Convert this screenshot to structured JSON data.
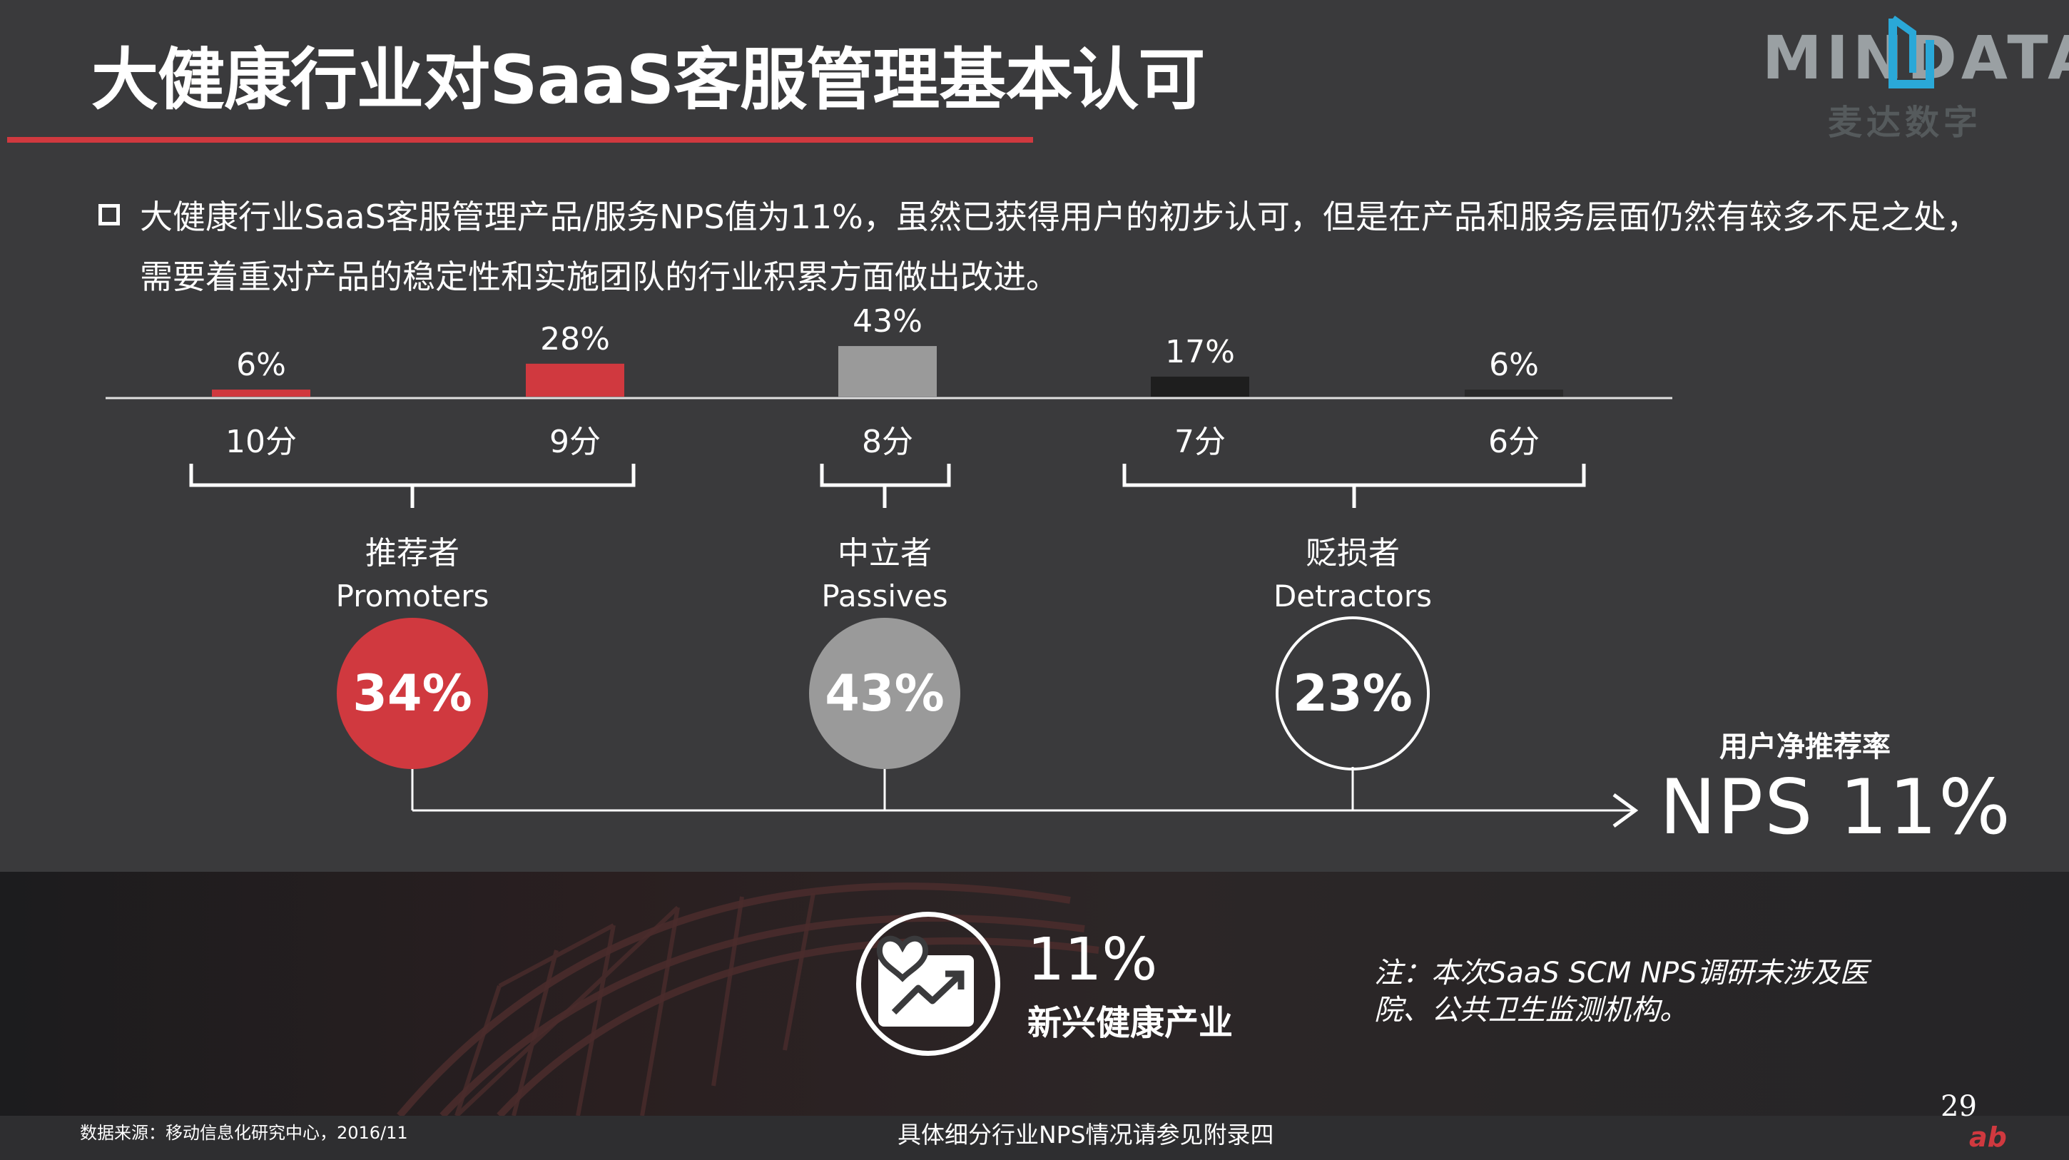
{
  "title": "大健康行业对SaaS客服管理基本认可",
  "logo": {
    "brand": "MINDATA",
    "subtitle": "麦达数字"
  },
  "summary": "大健康行业SaaS客服管理产品/服务NPS值为11%，虽然已获得用户的初步认可，但是在产品和服务层面仍然有较多不足之处，需要着重对产品的稳定性和实施团队的行业积累方面做出改进。",
  "chart_data": {
    "type": "bar",
    "categories": [
      "10分",
      "9分",
      "8分",
      "7分",
      "6分"
    ],
    "values": [
      6,
      28,
      43,
      17,
      6
    ],
    "value_labels": [
      "6%",
      "28%",
      "43%",
      "17%",
      "6%"
    ],
    "colors": [
      "#d0393f",
      "#d0393f",
      "#9a9a9a",
      "#1e1e1e",
      "#2a2a2a"
    ],
    "groups": [
      {
        "name_cn": "推荐者",
        "name_en": "Promoters",
        "value": "34%",
        "style": "red",
        "fill": "#d0393f",
        "categories": [
          "10分",
          "9分"
        ]
      },
      {
        "name_cn": "中立者",
        "name_en": "Passives",
        "value": "43%",
        "style": "gray",
        "fill": "#9a9a9a",
        "categories": [
          "8分"
        ]
      },
      {
        "name_cn": "贬损者",
        "name_en": "Detractors",
        "value": "23%",
        "style": "outline",
        "fill": "none",
        "categories": [
          "7分",
          "6分"
        ]
      }
    ]
  },
  "nps": {
    "label": "用户净推荐率",
    "value": "NPS  11%"
  },
  "stat": {
    "value": "11%",
    "label": "新兴健康产业",
    "icon": "heart-chart-icon"
  },
  "note": "注：本次SaaS SCM NPS调研未涉及医院、公共卫生监测机构。",
  "source": "数据来源：移动信息化研究中心，2016/11",
  "appendix": "具体细分行业NPS情况请参见附录四",
  "page_number": "29",
  "accent": "#d0393f"
}
